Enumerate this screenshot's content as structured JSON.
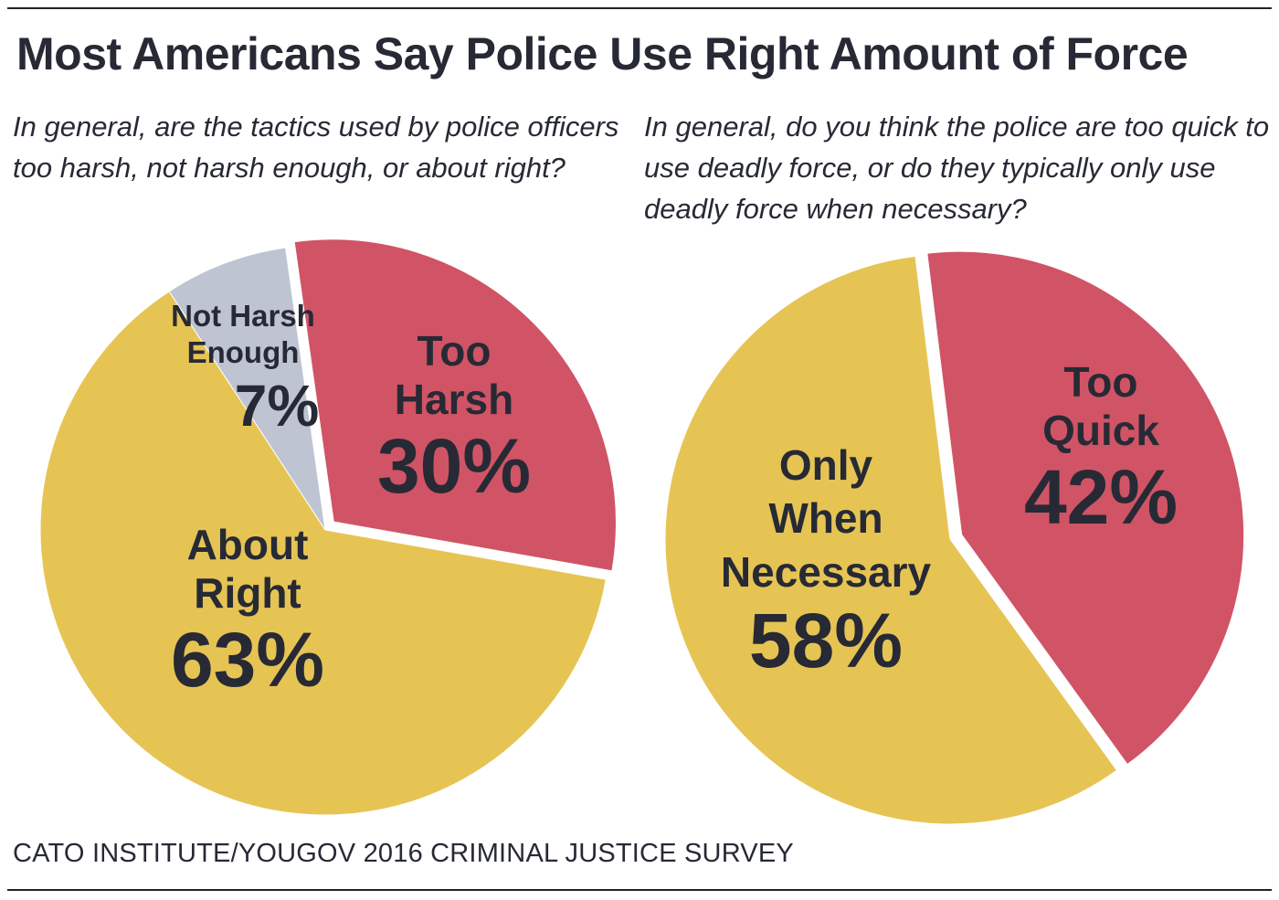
{
  "title": "Most Americans Say Police Use Right Amount of Force",
  "source": "CATO INSTITUTE/YOUGOV 2016 CRIMINAL JUSTICE SURVEY",
  "colors": {
    "red": "#d05465",
    "yellow": "#e6c454",
    "gray": "#bec4d2",
    "text": "#272a35"
  },
  "chart_data": [
    {
      "type": "pie",
      "title": "In general, are the tactics used by police officers too harsh, not harsh enough, or about right?",
      "slices": [
        {
          "label_line1": "Too",
          "label_line2": "Harsh",
          "value": 30,
          "value_label": "30%",
          "color": "#d05465",
          "exploded": true
        },
        {
          "label_line1": "About",
          "label_line2": "Right",
          "value": 63,
          "value_label": "63%",
          "color": "#e6c454",
          "exploded": false
        },
        {
          "label_line1": "Not Harsh",
          "label_line2": "Enough",
          "value": 7,
          "value_label": "7%",
          "color": "#bec4d2",
          "exploded": false
        }
      ]
    },
    {
      "type": "pie",
      "title": "In general, do you think the police are too quick to use deadly force, or do they typically only use deadly force when necessary?",
      "slices": [
        {
          "label_line1": "Too",
          "label_line2": "Quick",
          "value": 42,
          "value_label": "42%",
          "color": "#d05465",
          "exploded": true
        },
        {
          "label_line1": "Only",
          "label_line2": "When",
          "label_line3": "Necessary",
          "value": 58,
          "value_label": "58%",
          "color": "#e6c454",
          "exploded": false
        }
      ]
    }
  ]
}
